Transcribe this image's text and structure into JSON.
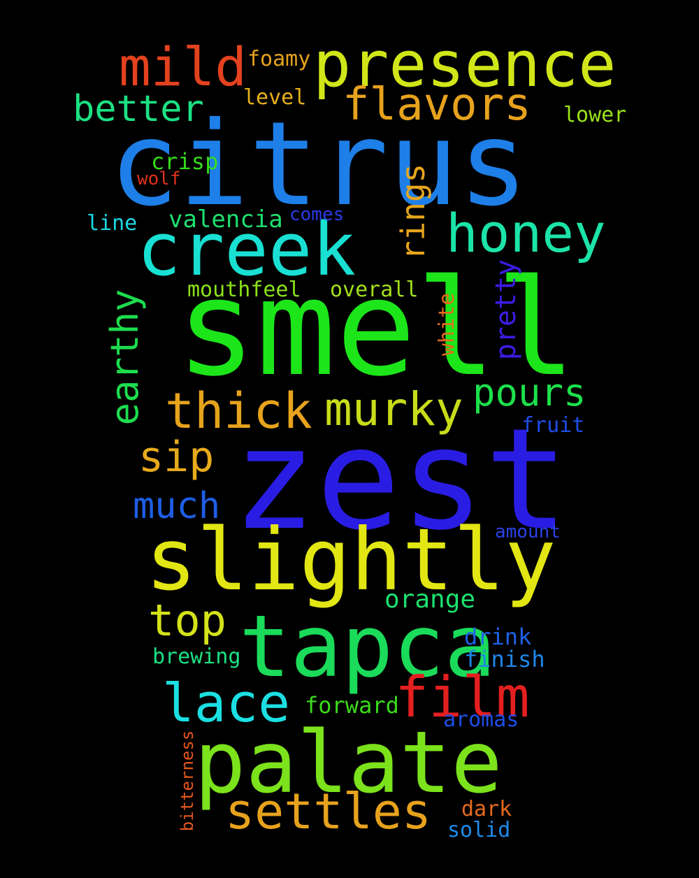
{
  "words": {
    "citrus": {
      "text": "citrus",
      "color": "#1E7FE8"
    },
    "smell": {
      "text": "smell",
      "color": "#1CE61A"
    },
    "zest": {
      "text": "zest",
      "color": "#2A1DE3"
    },
    "slightly": {
      "text": "slightly",
      "color": "#E2E613"
    },
    "tapca": {
      "text": "tapca",
      "color": "#1BDB5A"
    },
    "palate": {
      "text": "palate",
      "color": "#7BE21B"
    },
    "presence": {
      "text": "presence",
      "color": "#D1E619"
    },
    "creek": {
      "text": "creek",
      "color": "#19E0D2"
    },
    "mild": {
      "text": "mild",
      "color": "#E4421E"
    },
    "flavors": {
      "text": "flavors",
      "color": "#E7A21D"
    },
    "honey": {
      "text": "honey",
      "color": "#1CE4A8"
    },
    "better": {
      "text": "better",
      "color": "#1CE183"
    },
    "thick": {
      "text": "thick",
      "color": "#E7A31C"
    },
    "murky": {
      "text": "murky",
      "color": "#C8DC1A"
    },
    "pours": {
      "text": "pours",
      "color": "#1CE14B"
    },
    "film": {
      "text": "film",
      "color": "#E41F1F"
    },
    "lace": {
      "text": "lace",
      "color": "#1BDFE2"
    },
    "settles": {
      "text": "settles",
      "color": "#E7A21D"
    },
    "top": {
      "text": "top",
      "color": "#D4E21A"
    },
    "sip": {
      "text": "sip",
      "color": "#E7AA1C"
    },
    "much": {
      "text": "much",
      "color": "#1E5EE6"
    },
    "earthy": {
      "text": "earthy",
      "color": "#1DDD4F"
    },
    "rings": {
      "text": "rings",
      "color": "#E7A61C"
    },
    "pretty": {
      "text": "pretty",
      "color": "#3A1DE3"
    },
    "white": {
      "text": "white",
      "color": "#E46A1E"
    },
    "foamy": {
      "text": "foamy",
      "color": "#E7A21D"
    },
    "level": {
      "text": "level",
      "color": "#E7B01C"
    },
    "lower": {
      "text": "lower",
      "color": "#9BE21A"
    },
    "crisp": {
      "text": "crisp",
      "color": "#36DB1B"
    },
    "wolf": {
      "text": "wolf",
      "color": "#E0301E"
    },
    "comes": {
      "text": "comes",
      "color": "#2C3BE6"
    },
    "line": {
      "text": "line",
      "color": "#1BD8E2"
    },
    "valencia": {
      "text": "valencia",
      "color": "#1CE16E"
    },
    "mouthfeel": {
      "text": "mouthfeel",
      "color": "#8BE21A"
    },
    "overall": {
      "text": "overall",
      "color": "#A3E01A"
    },
    "fruit": {
      "text": "fruit",
      "color": "#1E4EE6"
    },
    "amount": {
      "text": "amount",
      "color": "#2A40E6"
    },
    "orange": {
      "text": "orange",
      "color": "#1CE16E"
    },
    "drink": {
      "text": "drink",
      "color": "#1E62E6"
    },
    "finish": {
      "text": "finish",
      "color": "#1E86E8"
    },
    "brewing": {
      "text": "brewing",
      "color": "#1CE183"
    },
    "forward": {
      "text": "forward",
      "color": "#3ADB1B"
    },
    "aromas": {
      "text": "aromas",
      "color": "#1E4EE6"
    },
    "bitterness": {
      "text": "bitterness",
      "color": "#E4561E"
    },
    "dark": {
      "text": "dark",
      "color": "#E46A1E"
    },
    "solid": {
      "text": "solid",
      "color": "#1E8AE8"
    }
  }
}
